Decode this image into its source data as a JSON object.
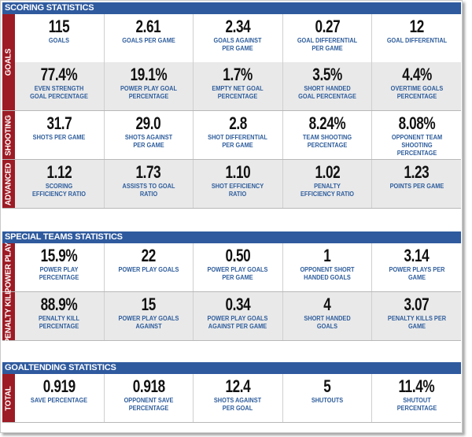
{
  "colors": {
    "header_bg": "#2f5a9e",
    "group_bg": "#9c1b24",
    "label": "#2e5d9c",
    "alt_row": "#e9e9e9"
  },
  "sections": [
    {
      "title": "SCORING STATISTICS",
      "groups": [
        {
          "label": "GOALS",
          "rows": [
            [
              {
                "value": "115",
                "label": "GOALS"
              },
              {
                "value": "2.61",
                "label": "GOALS PER GAME"
              },
              {
                "value": "2.34",
                "label": "GOALS AGAINST PER GAME"
              },
              {
                "value": "0.27",
                "label": "GOAL DIFFERENTIAL PER GAME"
              },
              {
                "value": "12",
                "label": "GOAL DIFFERENTIAL"
              }
            ],
            [
              {
                "value": "77.4%",
                "label": "EVEN STRENGTH GOAL PERCENTAGE"
              },
              {
                "value": "19.1%",
                "label": "POWER PLAY GOAL PERCENTAGE"
              },
              {
                "value": "1.7%",
                "label": "EMPTY NET GOAL PERCENTAGE"
              },
              {
                "value": "3.5%",
                "label": "SHORT HANDED GOAL PERCENTAGE"
              },
              {
                "value": "4.4%",
                "label": "OVERTIME GOALS PERCENTAGE"
              }
            ]
          ]
        },
        {
          "label": "SHOOTING",
          "rows": [
            [
              {
                "value": "31.7",
                "label": "SHOTS PER GAME"
              },
              {
                "value": "29.0",
                "label": "SHOTS AGAINST PER GAME"
              },
              {
                "value": "2.8",
                "label": "SHOT DIFFERENTIAL PER GAME"
              },
              {
                "value": "8.24%",
                "label": "TEAM SHOOTING PERCENTAGE"
              },
              {
                "value": "8.08%",
                "label": "OPPONENT TEAM SHOOTING PERCENTAGE"
              }
            ]
          ]
        },
        {
          "label": "ADVANCED",
          "rows": [
            [
              {
                "value": "1.12",
                "label": "SCORING EFFICIENCY RATIO"
              },
              {
                "value": "1.73",
                "label": "ASSISTS TO GOAL RATIO"
              },
              {
                "value": "1.10",
                "label": "SHOT EFFICIENCY RATIO"
              },
              {
                "value": "1.02",
                "label": "PENALTY EFFICIENCY RATIO"
              },
              {
                "value": "1.23",
                "label": "POINTS PER GAME"
              }
            ]
          ]
        }
      ]
    },
    {
      "title": "SPECIAL TEAMS STATISTICS",
      "groups": [
        {
          "label": "POWER PLAY",
          "rows": [
            [
              {
                "value": "15.9%",
                "label": "POWER PLAY PERCENTAGE"
              },
              {
                "value": "22",
                "label": "POWER PLAY GOALS"
              },
              {
                "value": "0.50",
                "label": "POWER PLAY GOALS PER GAME"
              },
              {
                "value": "1",
                "label": "OPPONENT SHORT HANDED GOALS"
              },
              {
                "value": "3.14",
                "label": "POWER PLAYS PER GAME"
              }
            ]
          ]
        },
        {
          "label": "PENALTY KILL",
          "rows": [
            [
              {
                "value": "88.9%",
                "label": "PENALTY KILL PERCENTAGE"
              },
              {
                "value": "15",
                "label": "POWER PLAY GOALS AGAINST"
              },
              {
                "value": "0.34",
                "label": "POWER PLAY GOALS AGAINST PER GAME"
              },
              {
                "value": "4",
                "label": "SHORT HANDED GOALS"
              },
              {
                "value": "3.07",
                "label": "PENALTY KILLS PER GAME"
              }
            ]
          ]
        }
      ]
    },
    {
      "title": "GOALTENDING STATISTICS",
      "groups": [
        {
          "label": "TOTAL",
          "rows": [
            [
              {
                "value": "0.919",
                "label": "SAVE PERCENTAGE"
              },
              {
                "value": "0.918",
                "label": "OPPONENT SAVE PERCENTAGE"
              },
              {
                "value": "12.4",
                "label": "SHOTS AGAINST PER GOAL"
              },
              {
                "value": "5",
                "label": "SHUTOUTS"
              },
              {
                "value": "11.4%",
                "label": "SHUTOUT PERCENTAGE"
              }
            ]
          ]
        }
      ]
    }
  ]
}
